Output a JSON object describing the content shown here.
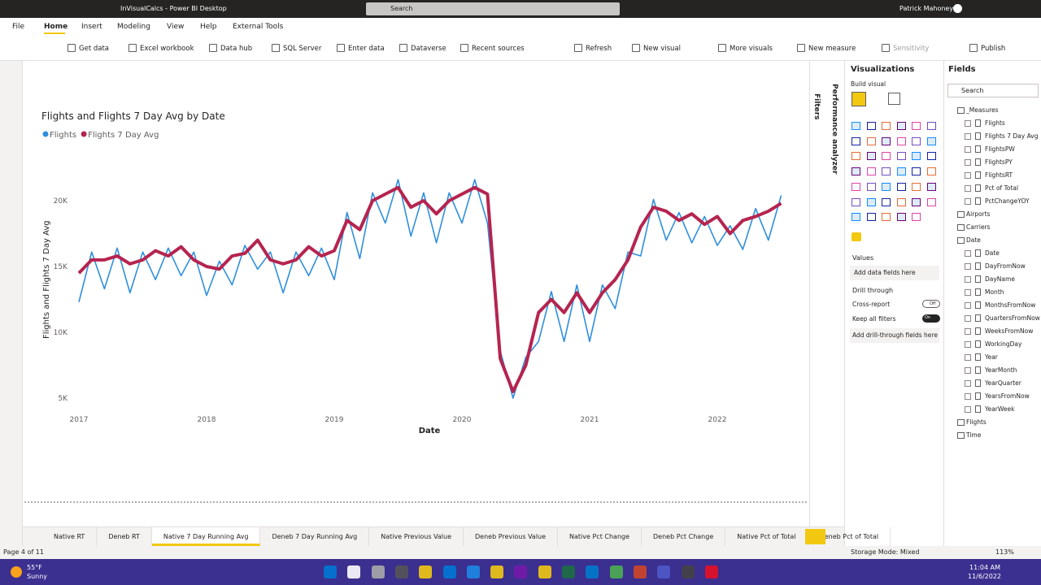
{
  "window": {
    "title": "InVisualCalcs - Power BI Desktop",
    "search": "Search",
    "user": "Patrick Mahoney"
  },
  "ribbon": {
    "tabs": [
      "File",
      "Home",
      "Insert",
      "Modeling",
      "View",
      "Help",
      "External Tools"
    ],
    "active": 1,
    "buttons": [
      "Get data",
      "Excel workbook",
      "Data hub",
      "SQL Server",
      "Enter data",
      "Dataverse",
      "Recent sources",
      "Refresh",
      "New visual",
      "More visuals",
      "New measure",
      "Sensitivity",
      "Publish"
    ]
  },
  "chart_data": {
    "type": "line",
    "title": "Flights and Flights 7 Day Avg by Date",
    "x_label": "Date",
    "y_label": "Flights and Flights 7 Day Avg",
    "legend": "top-left",
    "grid": false,
    "x": [
      2017.0,
      2017.1,
      2017.2,
      2017.3,
      2017.4,
      2017.5,
      2017.6,
      2017.7,
      2017.8,
      2017.9,
      2018.0,
      2018.1,
      2018.2,
      2018.3,
      2018.4,
      2018.5,
      2018.6,
      2018.7,
      2018.8,
      2018.9,
      2019.0,
      2019.1,
      2019.2,
      2019.3,
      2019.4,
      2019.5,
      2019.6,
      2019.7,
      2019.8,
      2019.9,
      2020.0,
      2020.1,
      2020.2,
      2020.3,
      2020.4,
      2020.5,
      2020.6,
      2020.7,
      2020.8,
      2020.9,
      2021.0,
      2021.1,
      2021.2,
      2021.3,
      2021.4,
      2021.5,
      2021.6,
      2021.7,
      2021.8,
      2021.9,
      2022.0,
      2022.1,
      2022.2,
      2022.3,
      2022.4,
      2022.5
    ],
    "series": [
      {
        "name": "Flights",
        "color": "#2f8fdd",
        "values": [
          12300,
          16100,
          13300,
          16400,
          13000,
          16100,
          14000,
          16400,
          14300,
          16100,
          12800,
          15400,
          13600,
          16600,
          14800,
          16100,
          13000,
          16100,
          14300,
          16400,
          14000,
          19100,
          15600,
          20600,
          18300,
          21600,
          17300,
          20600,
          16800,
          20600,
          18300,
          21600,
          18300,
          8600,
          5000,
          8100,
          9300,
          13100,
          9300,
          13600,
          9300,
          13600,
          11800,
          16100,
          15800,
          20100,
          17000,
          19100,
          16800,
          18800,
          16600,
          18100,
          16300,
          19400,
          17000,
          20400
        ]
      },
      {
        "name": "Flights 7 Day Avg",
        "color": "#b5244f",
        "values": [
          14500,
          15500,
          15500,
          15800,
          15200,
          15500,
          16200,
          15800,
          16500,
          15500,
          15000,
          14800,
          15800,
          16000,
          17000,
          15500,
          15200,
          15500,
          16500,
          15800,
          16200,
          18500,
          17800,
          20000,
          20500,
          21000,
          19500,
          20000,
          19000,
          20000,
          20500,
          21000,
          20500,
          8000,
          5500,
          7500,
          11500,
          12500,
          11500,
          13000,
          11500,
          13000,
          14000,
          15500,
          18000,
          19500,
          19200,
          18500,
          19000,
          18200,
          18800,
          17500,
          18500,
          18800,
          19200,
          19800
        ]
      }
    ],
    "xlim": [
      2017.0,
      2022.5
    ],
    "xticks": [
      2017,
      2018,
      2019,
      2020,
      2021,
      2022
    ],
    "ylim": [
      4000,
      24000
    ],
    "yticks": [
      {
        "value": 5000,
        "label": "5K"
      },
      {
        "value": 10000,
        "label": "10K"
      },
      {
        "value": 15000,
        "label": "15K"
      },
      {
        "value": 20000,
        "label": "20K"
      }
    ]
  },
  "side": {
    "filters": "Filters",
    "performance": "Performance analyzer"
  },
  "visualizations": {
    "title": "Visualizations",
    "build": "Build visual",
    "values": "Values",
    "add_data": "Add data fields here",
    "drill": "Drill through",
    "cross": "Cross-report",
    "cross_state": "Off",
    "keep": "Keep all filters",
    "keep_state": "On",
    "add_drill": "Add drill-through fields here"
  },
  "fields": {
    "title": "Fields",
    "search": "Search",
    "tables": [
      {
        "name": "_Measures",
        "items": [
          "Flights",
          "Flights 7 Day Avg",
          "FlightsPW",
          "FlightsPY",
          "FlightsRT",
          "Pct of Total",
          "PctChangeYOY"
        ]
      },
      {
        "name": "Airports"
      },
      {
        "name": "Carriers"
      },
      {
        "name": "Date",
        "items": [
          "Date",
          "DayFromNow",
          "DayName",
          "Month",
          "MonthsFromNow",
          "QuartersFromNow",
          "WeeksFromNow",
          "WorkingDay",
          "Year",
          "YearMonth",
          "YearQuarter",
          "YearsFromNow",
          "YearWeek"
        ]
      },
      {
        "name": "Flights"
      },
      {
        "name": "Time"
      }
    ]
  },
  "pages": {
    "tabs": [
      "Native RT",
      "Deneb RT",
      "Native 7 Day Running Avg",
      "Deneb 7 Day Running Avg",
      "Native Previous Value",
      "Deneb Previous Value",
      "Native Pct Change",
      "Deneb Pct Change",
      "Native Pct of Total",
      "Deneb Pct of Total"
    ],
    "active": 2,
    "status": "Page 4 of 11"
  },
  "status": {
    "storage": "Storage Mode: Mixed",
    "zoom": "113%"
  },
  "taskbar": {
    "temp": "55°F",
    "weather": "Sunny",
    "time": "11:04 AM",
    "date": "11/6/2022"
  }
}
